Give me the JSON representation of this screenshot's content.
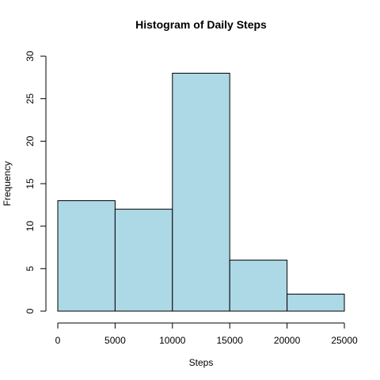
{
  "chart_data": {
    "type": "bar",
    "title": "Histogram of Daily Steps",
    "xlabel": "Steps",
    "ylabel": "Frequency",
    "bins": [
      {
        "start": 0,
        "end": 5000,
        "count": 13
      },
      {
        "start": 5000,
        "end": 10000,
        "count": 12
      },
      {
        "start": 10000,
        "end": 15000,
        "count": 28
      },
      {
        "start": 15000,
        "end": 20000,
        "count": 6
      },
      {
        "start": 20000,
        "end": 25000,
        "count": 2
      }
    ],
    "xlim": [
      0,
      25000
    ],
    "ylim": [
      0,
      30
    ],
    "x_ticks": [
      0,
      5000,
      10000,
      15000,
      20000,
      25000
    ],
    "y_ticks": [
      0,
      5,
      10,
      15,
      20,
      25,
      30
    ],
    "bar_color": "#add8e6",
    "grid": false,
    "legend": "none"
  }
}
